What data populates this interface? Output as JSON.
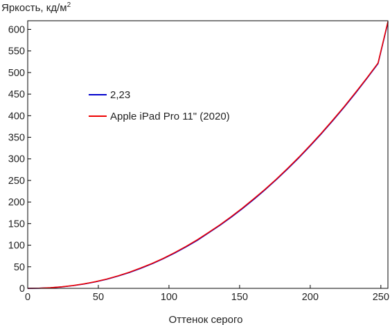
{
  "chart_data": {
    "type": "line",
    "ylabel": "Яркость, кд/м",
    "ylabel_superscript": "2",
    "xlabel": "Оттенок серого",
    "xlim": [
      0,
      255
    ],
    "ylim": [
      0,
      620
    ],
    "x_ticks": [
      "0",
      "50",
      "100",
      "150",
      "200",
      "250"
    ],
    "y_ticks": [
      "0",
      "50",
      "100",
      "150",
      "200",
      "250",
      "300",
      "350",
      "400",
      "450",
      "500",
      "550",
      "600"
    ],
    "grid": false,
    "legend_position": "center-left",
    "series": [
      {
        "name": "2,23",
        "color": "#0000cc",
        "x": [
          0,
          8,
          16,
          24,
          32,
          40,
          48,
          56,
          64,
          72,
          80,
          88,
          96,
          104,
          112,
          120,
          128,
          136,
          144,
          152,
          160,
          168,
          176,
          184,
          192,
          200,
          208,
          216,
          224,
          232,
          240,
          248,
          255
        ],
        "y": [
          0,
          0.3,
          1.3,
          3.3,
          6.2,
          10.1,
          15.0,
          21.1,
          28.4,
          36.6,
          46.2,
          56.8,
          68.6,
          81.6,
          95.9,
          111.0,
          128.4,
          145.9,
          164.6,
          184.7,
          205.8,
          228.3,
          251.8,
          276.7,
          302.6,
          330.2,
          358.6,
          388.6,
          419.6,
          452.0,
          485.8,
          520.6,
          616
        ]
      },
      {
        "name": "Apple iPad Pro 11\" (2020)",
        "color": "#ee0000",
        "x": [
          0,
          8,
          16,
          24,
          32,
          40,
          48,
          56,
          64,
          72,
          80,
          88,
          96,
          104,
          112,
          120,
          128,
          136,
          144,
          152,
          160,
          168,
          176,
          184,
          192,
          200,
          208,
          216,
          224,
          232,
          240,
          248,
          255
        ],
        "y": [
          0,
          0.4,
          1.5,
          3.5,
          6.5,
          10.5,
          15.5,
          21.6,
          29.0,
          37.5,
          47.2,
          57.7,
          69.5,
          82.8,
          97.0,
          112.5,
          129.5,
          147.0,
          166.0,
          186.0,
          207.5,
          229.5,
          253.0,
          278.0,
          304.0,
          331.5,
          360.0,
          390.0,
          421.0,
          453.5,
          487.0,
          522.0,
          618
        ]
      }
    ]
  }
}
